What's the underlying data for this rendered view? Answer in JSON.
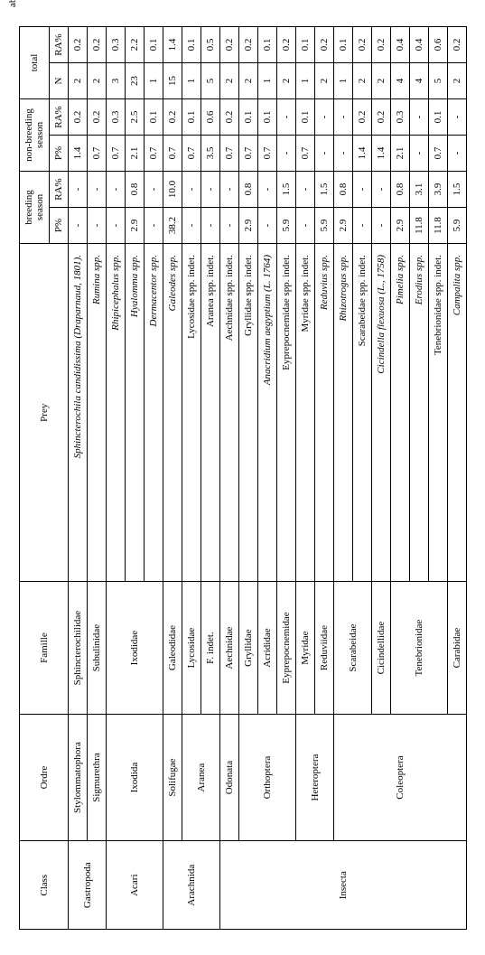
{
  "caption_fragment": "abundance",
  "headers": {
    "class": "Class",
    "ordre": "Ordre",
    "famille": "Famille",
    "prey": "Prey",
    "breeding": "breeding season",
    "nonbreeding": "non-breeding season",
    "total": "total",
    "p": "P%",
    "ra": "RA%",
    "n": "N"
  },
  "cells": {
    "c_gastropoda": "Gastropoda",
    "c_acari": "Acari",
    "c_arachnida": "Arachnida",
    "c_insecta": "Insecta",
    "o_stylo": "Stylommatophora",
    "o_sigmu": "Sigmurethra",
    "o_ixodida": "Ixodida",
    "o_solif": "Solifugae",
    "o_aranea": "Aranea",
    "o_odonata": "Odonata",
    "o_ortho": "Orthoptera",
    "o_hetero": "Heteroptera",
    "o_coleo": "Coleoptera",
    "f_sphin": "Sphincterochilidae",
    "f_subul": "Subulinidae",
    "f_ixod": "Ixodidae",
    "f_galeo": "Galeodidae",
    "f_lycos": "Lycosidae",
    "f_findet": "F. indet.",
    "f_aechn": "Aechnidae",
    "f_gryll": "Gryllidae",
    "f_acrid": "Acrididae",
    "f_eypre": "Eyprepocnemidae",
    "f_myrid": "Myridae",
    "f_reduv": "Reduviidae",
    "f_scarab": "Scarabeidae",
    "f_cicind": "Cicindellidae",
    "f_teneb": "Tenebrionidae",
    "f_carab": "Carabidae",
    "p_sphin": "Sphincterochila candidissima (Draparnaud, 1801).",
    "p_rumina": "Rumina spp.",
    "p_rhipi": "Rhipicephalus spp.",
    "p_hyalo": "Hyalomma spp.",
    "p_derma": "Dermacentor spp.",
    "p_galeo": "Galeodes spp.",
    "p_lycos": "Lycosidae spp. indet.",
    "p_aranea": "Aranea spp. indet.",
    "p_aechn": "Aechnidae spp. indet.",
    "p_gryll": "Gryllidae spp. indet.",
    "p_anacr": "Anacridium aegyptium (L. 1764)",
    "p_eypre": "Eyprepocnemidae spp. indet.",
    "p_myrid": "Myridae spp. indet.",
    "p_reduv": "Reduvius spp.",
    "p_rhizo": "Rhizotrogus spp.",
    "p_scarab": "Scarabeidae spp. indet.",
    "p_cicind": "Cicindella flexuosa (L., 1758)",
    "p_pimel": "Pimelia spp.",
    "p_erodi": "Erodius spp.",
    "p_tenebi": "Tenebrionidae spp. indet.",
    "p_campal": "Campalita spp."
  },
  "values": {
    "r1": {
      "bp": "-",
      "bra": "-",
      "nbp": "1.4",
      "nbra": "0.2",
      "n": "2",
      "tra": "0.2"
    },
    "r2": {
      "bp": "-",
      "bra": "-",
      "nbp": "0.7",
      "nbra": "0.2",
      "n": "2",
      "tra": "0.2"
    },
    "r3": {
      "bp": "-",
      "bra": "-",
      "nbp": "0.7",
      "nbra": "0.3",
      "n": "3",
      "tra": "0.3"
    },
    "r4": {
      "bp": "2.9",
      "bra": "0.8",
      "nbp": "2.1",
      "nbra": "2.5",
      "n": "23",
      "tra": "2.2"
    },
    "r5": {
      "bp": "-",
      "bra": "-",
      "nbp": "0.7",
      "nbra": "0.1",
      "n": "1",
      "tra": "0.1"
    },
    "r6": {
      "bp": "38.2",
      "bra": "10.0",
      "nbp": "0.7",
      "nbra": "0.2",
      "n": "15",
      "tra": "1.4"
    },
    "r7": {
      "bp": "-",
      "bra": "-",
      "nbp": "0.7",
      "nbra": "0.1",
      "n": "1",
      "tra": "0.1"
    },
    "r8": {
      "bp": "-",
      "bra": "-",
      "nbp": "3.5",
      "nbra": "0.6",
      "n": "5",
      "tra": "0.5"
    },
    "r9": {
      "bp": "-",
      "bra": "-",
      "nbp": "0.7",
      "nbra": "0.2",
      "n": "2",
      "tra": "0.2"
    },
    "r10": {
      "bp": "2.9",
      "bra": "0.8",
      "nbp": "0.7",
      "nbra": "0.1",
      "n": "2",
      "tra": "0.2"
    },
    "r11": {
      "bp": "-",
      "bra": "-",
      "nbp": "0.7",
      "nbra": "0.1",
      "n": "1",
      "tra": "0.1"
    },
    "r12": {
      "bp": "5.9",
      "bra": "1.5",
      "nbp": "-",
      "nbra": "-",
      "n": "2",
      "tra": "0.2"
    },
    "r13": {
      "bp": "-",
      "bra": "-",
      "nbp": "0.7",
      "nbra": "0.1",
      "n": "1",
      "tra": "0.1"
    },
    "r14": {
      "bp": "5.9",
      "bra": "1.5",
      "nbp": "-",
      "nbra": "-",
      "n": "2",
      "tra": "0.2"
    },
    "r15": {
      "bp": "2.9",
      "bra": "0.8",
      "nbp": "-",
      "nbra": "-",
      "n": "1",
      "tra": "0.1"
    },
    "r16": {
      "bp": "-",
      "bra": "-",
      "nbp": "1.4",
      "nbra": "0.2",
      "n": "2",
      "tra": "0.2"
    },
    "r17": {
      "bp": "-",
      "bra": "-",
      "nbp": "1.4",
      "nbra": "0.2",
      "n": "2",
      "tra": "0.2"
    },
    "r18": {
      "bp": "2.9",
      "bra": "0.8",
      "nbp": "2.1",
      "nbra": "0.3",
      "n": "4",
      "tra": "0.4"
    },
    "r19": {
      "bp": "11.8",
      "bra": "3.1",
      "nbp": "-",
      "nbra": "-",
      "n": "4",
      "tra": "0.4"
    },
    "r20": {
      "bp": "11.8",
      "bra": "3.9",
      "nbp": "0.7",
      "nbra": "0.1",
      "n": "5",
      "tra": "0.6"
    },
    "r21": {
      "bp": "5.9",
      "bra": "1.5",
      "nbp": "-",
      "nbra": "-",
      "n": "2",
      "tra": "0.2"
    }
  }
}
